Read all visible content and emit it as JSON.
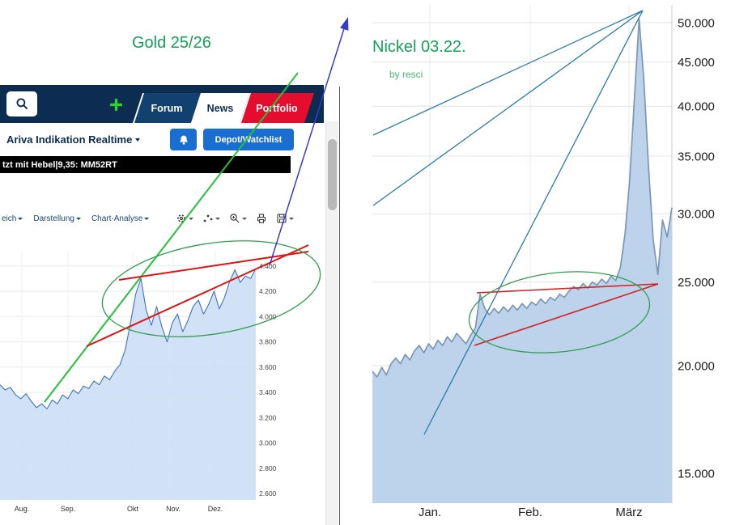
{
  "left": {
    "title": "Gold 25/26",
    "browser": {
      "tabs": [
        {
          "label": "Forum"
        },
        {
          "label": "News"
        },
        {
          "label": "Portfolio"
        }
      ],
      "instrument": "Ariva Indikation Realtime",
      "watchlist_button": "Depot/Watchlist",
      "ticker": "tzt mit Hebel|9,35: MM52RT",
      "toolbar_menus": [
        {
          "label": "eich"
        },
        {
          "label": "Darstellung"
        },
        {
          "label": "Chart-Analyse"
        }
      ],
      "toolbar_icons": [
        "gear",
        "compare-dots",
        "zoom",
        "printer",
        "save"
      ]
    }
  },
  "right": {
    "title": "Nickel 03.22.",
    "credit": "by resci"
  },
  "colors": {
    "title_green": "#12a257",
    "annotation_green": "#2f9e4f",
    "annotation_red": "#e01212",
    "annotation_blue": "#3a3ac8",
    "fan_teal": "#2a7ca6",
    "navy": "#0d2c52",
    "button_blue": "#1a6ed2",
    "portfolio_red": "#e60c2d",
    "plus_green": "#2fd12f"
  },
  "chart_data": [
    {
      "type": "area",
      "name": "gold",
      "title": "Gold 25/26",
      "x_tick_labels": [
        "Aug.",
        "Sep.",
        "Okt",
        "Nov.",
        "Dez."
      ],
      "y_ticks": [
        4400,
        4200,
        4000,
        3800,
        3600,
        3400,
        3200,
        3000,
        2800,
        2600
      ],
      "y_tick_labels": [
        "4.400",
        "4.200",
        "4.000",
        "3.800",
        "3.600",
        "3.400",
        "3.200",
        "3.000",
        "2.800",
        "2.600"
      ],
      "scale": "linear",
      "ylim": [
        2550,
        4520
      ],
      "values": [
        3460,
        3420,
        3440,
        3380,
        3350,
        3390,
        3330,
        3280,
        3310,
        3270,
        3340,
        3310,
        3380,
        3350,
        3420,
        3390,
        3450,
        3430,
        3490,
        3460,
        3530,
        3500,
        3570,
        3620,
        3740,
        3950,
        4180,
        4300,
        4050,
        3930,
        4080,
        3920,
        3800,
        3950,
        4020,
        3880,
        3970,
        4080,
        4130,
        4020,
        4100,
        4200,
        4060,
        4150,
        4280,
        4370,
        4270,
        4320,
        4300,
        4380
      ],
      "annotations": [
        "green-uptrend-line",
        "red-rising-wedge-lines",
        "green-highlight-ellipse",
        "blue-arrow-up"
      ]
    },
    {
      "type": "area",
      "name": "nickel",
      "title": "Nickel 03.22.",
      "x_tick_labels": [
        "Jan.",
        "Feb.",
        "März"
      ],
      "y_ticks": [
        50000,
        45000,
        40000,
        35000,
        30000,
        25000,
        20000,
        15000
      ],
      "y_tick_labels": [
        "50.000",
        "45.000",
        "40.000",
        "35.000",
        "30.000",
        "25.000",
        "20.000",
        "15.000"
      ],
      "scale": "log",
      "ylim": [
        13800,
        51500
      ],
      "values": [
        19700,
        19400,
        19900,
        19500,
        20100,
        20400,
        20100,
        20600,
        20300,
        20800,
        21100,
        20700,
        21200,
        20900,
        21400,
        21100,
        21600,
        21300,
        21800,
        21500,
        21200,
        21700,
        22100,
        24200,
        23300,
        22900,
        23300,
        23000,
        23400,
        23100,
        23500,
        23200,
        23600,
        23300,
        23700,
        23500,
        23900,
        23600,
        24000,
        23800,
        24200,
        24000,
        24400,
        24700,
        24500,
        24900,
        24600,
        25000,
        24800,
        25200,
        24900,
        25400,
        25100,
        26000,
        28500,
        33000,
        41000,
        50500,
        43000,
        34000,
        28000,
        25500,
        29500,
        28200,
        30500
      ],
      "annotations": [
        "fan-lines-from-peak",
        "red-rising-wedge-lines",
        "green-highlight-ellipse"
      ]
    }
  ]
}
